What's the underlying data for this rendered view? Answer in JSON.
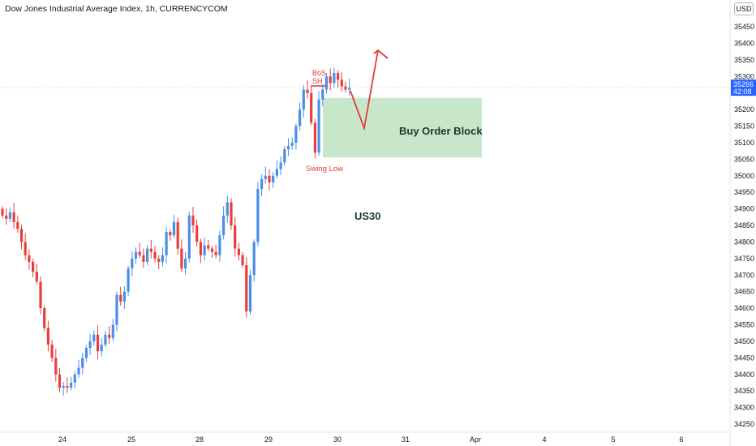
{
  "header": {
    "title": "Dow Jones Industrial Average Index, 1h, CURRENCYCOM",
    "currency": "USD"
  },
  "price_label": {
    "price": "35266",
    "countdown": "42:08"
  },
  "colors": {
    "up": "#4a8fe7",
    "down": "#e5403d",
    "zone_fill": "#c8e6c9",
    "annotation": "#e53935",
    "price_badge": "#2962ff"
  },
  "chart_data": {
    "type": "candlestick",
    "title": "Dow Jones Industrial Average Index, 1h, CURRENCYCOM",
    "x_ticks": [
      "24",
      "25",
      "28",
      "29",
      "30",
      "31",
      "Apr",
      "4",
      "5",
      "6"
    ],
    "y_ticks": [
      34250,
      34300,
      34350,
      34400,
      34450,
      34500,
      34550,
      34600,
      34650,
      34700,
      34750,
      34800,
      34850,
      34900,
      34950,
      35000,
      35050,
      35100,
      35150,
      35200,
      35250,
      35300,
      35350,
      35400,
      35450
    ],
    "ylim": [
      34225,
      35490
    ],
    "last_price": 35266,
    "candles_close": [
      34880,
      34870,
      34890,
      34860,
      34840,
      34800,
      34760,
      34740,
      34710,
      34680,
      34600,
      34540,
      34490,
      34450,
      34400,
      34360,
      34365,
      34360,
      34375,
      34400,
      34420,
      34450,
      34480,
      34500,
      34520,
      34470,
      34490,
      34520,
      34510,
      34550,
      34640,
      34620,
      34650,
      34720,
      34750,
      34770,
      34760,
      34740,
      34780,
      34770,
      34750,
      34740,
      34760,
      34830,
      34820,
      34860,
      34780,
      34720,
      34750,
      34880,
      34850,
      34800,
      34760,
      34790,
      34780,
      34770,
      34760,
      34820,
      34880,
      34920,
      34850,
      34780,
      34760,
      34730,
      34590,
      34700,
      34800,
      34960,
      34990,
      35000,
      34980,
      35000,
      35020,
      35040,
      35080,
      35090,
      35100,
      35150,
      35200,
      35260,
      35250,
      35160,
      35070,
      35230,
      35260,
      35300,
      35280,
      35310,
      35290,
      35270,
      35260,
      35266
    ],
    "annotations": [
      {
        "text": "BoS",
        "color": "#e53935"
      },
      {
        "text": "SH",
        "color": "#e53935"
      },
      {
        "text": "Swing Low",
        "color": "#e53935"
      },
      {
        "text": "Buy Order Block",
        "color": "#1b3a2b"
      },
      {
        "text": "US30",
        "color": "#1b3a2b"
      }
    ],
    "order_block": {
      "low": 35055,
      "high": 35235
    },
    "grid": false
  }
}
